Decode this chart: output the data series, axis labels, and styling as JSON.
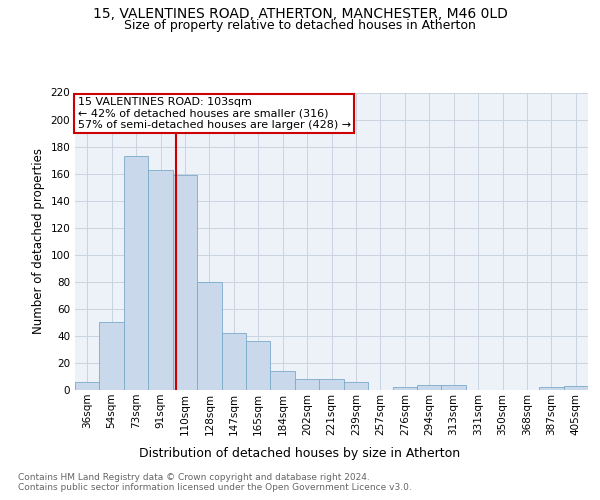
{
  "title1": "15, VALENTINES ROAD, ATHERTON, MANCHESTER, M46 0LD",
  "title2": "Size of property relative to detached houses in Atherton",
  "xlabel": "Distribution of detached houses by size in Atherton",
  "ylabel": "Number of detached properties",
  "bar_labels": [
    "36sqm",
    "54sqm",
    "73sqm",
    "91sqm",
    "110sqm",
    "128sqm",
    "147sqm",
    "165sqm",
    "184sqm",
    "202sqm",
    "221sqm",
    "239sqm",
    "257sqm",
    "276sqm",
    "294sqm",
    "313sqm",
    "331sqm",
    "350sqm",
    "368sqm",
    "387sqm",
    "405sqm"
  ],
  "bar_values": [
    6,
    50,
    173,
    163,
    159,
    80,
    42,
    36,
    14,
    8,
    8,
    6,
    0,
    2,
    4,
    4,
    0,
    0,
    0,
    2,
    3
  ],
  "bar_color": "#c9d9eb",
  "bar_edge_color": "#7aaac8",
  "vline_x": 3.65,
  "vline_color": "#cc0000",
  "annotation_line1": "15 VALENTINES ROAD: 103sqm",
  "annotation_line2": "← 42% of detached houses are smaller (316)",
  "annotation_line3": "57% of semi-detached houses are larger (428) →",
  "annotation_box_color": "#cc0000",
  "ylim": [
    0,
    220
  ],
  "yticks": [
    0,
    20,
    40,
    60,
    80,
    100,
    120,
    140,
    160,
    180,
    200,
    220
  ],
  "grid_color": "#c8d4e0",
  "bg_color": "#edf2f8",
  "footnote1": "Contains HM Land Registry data © Crown copyright and database right 2024.",
  "footnote2": "Contains public sector information licensed under the Open Government Licence v3.0.",
  "title1_fontsize": 10,
  "title2_fontsize": 9,
  "xlabel_fontsize": 9,
  "ylabel_fontsize": 8.5,
  "tick_fontsize": 7.5,
  "annot_fontsize": 8
}
